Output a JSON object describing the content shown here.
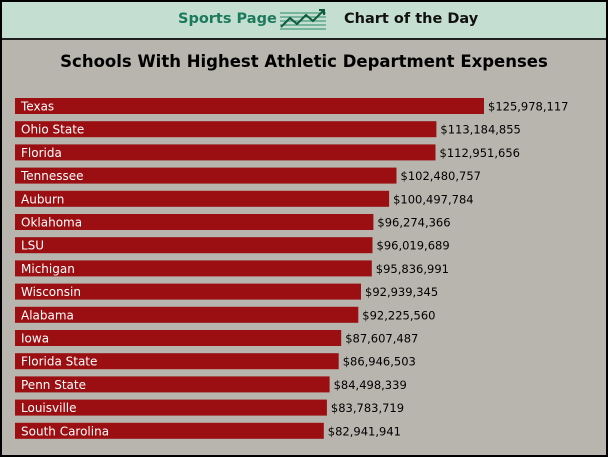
{
  "header": {
    "brand": "Sports Page",
    "section": "Chart of the Day",
    "icon": "line-chart-icon",
    "background_color": "#c4dfd2",
    "brand_color": "#1c7a5c"
  },
  "chart_data": {
    "type": "bar",
    "orientation": "horizontal",
    "title": "Schools With Highest Athletic Department Expenses",
    "xlabel": "",
    "ylabel": "",
    "xlim": [
      0,
      125978117
    ],
    "bar_color": "#9b0e11",
    "background_color": "#b8b5ae",
    "categories": [
      "Texas",
      "Ohio State",
      "Florida",
      "Tennessee",
      "Auburn",
      "Oklahoma",
      "LSU",
      "Michigan",
      "Wisconsin",
      "Alabama",
      "Iowa",
      "Florida State",
      "Penn State",
      "Louisville",
      "South Carolina"
    ],
    "values": [
      125978117,
      113184855,
      112951656,
      102480757,
      100497784,
      96274366,
      96019689,
      95836991,
      92939345,
      92225560,
      87607487,
      86946503,
      84498339,
      83783719,
      82941941
    ],
    "value_labels": [
      "$125,978,117",
      "$113,184,855",
      "$112,951,656",
      "$102,480,757",
      "$100,497,784",
      "$96,274,366",
      "$96,019,689",
      "$95,836,991",
      "$92,939,345",
      "$92,225,560",
      "$87,607,487",
      "$86,946,503",
      "$84,498,339",
      "$83,783,719",
      "$82,941,941"
    ]
  }
}
